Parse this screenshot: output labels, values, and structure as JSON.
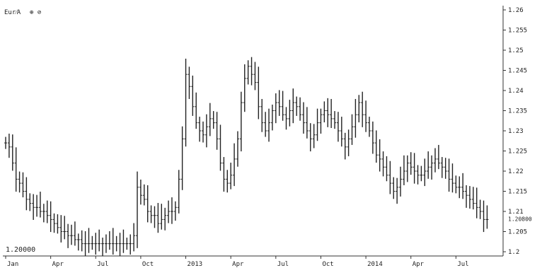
{
  "header": {
    "symbol": "Eur⁄A",
    "controls": "⊕ ⊘"
  },
  "chart_data": {
    "type": "bar",
    "style": "ohlc",
    "baseline_label": "1.20000",
    "current_value_label": "1.20800",
    "ylim": [
      1.2,
      1.26
    ],
    "y_ticks": [
      "1.26",
      "1.255",
      "1.25",
      "1.245",
      "1.24",
      "1.235",
      "1.23",
      "1.225",
      "1.22",
      "1.215",
      "1.21",
      "1.205",
      "1.2"
    ],
    "y_tick_values": [
      1.26,
      1.255,
      1.25,
      1.245,
      1.24,
      1.235,
      1.23,
      1.225,
      1.22,
      1.215,
      1.21,
      1.205,
      1.2
    ],
    "x_ticks": [
      "Jan",
      "Apr",
      "Jul",
      "Oct",
      "2013",
      "Apr",
      "Jul",
      "Oct",
      "2014",
      "Apr",
      "Jul"
    ],
    "x_tick_values": [
      0,
      13,
      26,
      39,
      52,
      65,
      78,
      91,
      104,
      117,
      130
    ],
    "x_range": [
      0,
      143
    ],
    "grid": false,
    "series": [
      {
        "close": [
          1.227,
          1.226,
          1.222,
          1.218,
          1.217,
          1.215,
          1.213,
          1.212,
          1.211,
          1.211,
          1.21,
          1.21,
          1.209,
          1.208,
          1.207,
          1.206,
          1.205,
          1.205,
          1.204,
          1.204,
          1.203,
          1.203,
          1.202,
          1.202,
          1.202,
          1.202,
          1.202,
          1.202,
          1.202,
          1.202,
          1.202,
          1.202,
          1.202,
          1.202,
          1.202,
          1.202,
          1.202,
          1.204,
          1.216,
          1.214,
          1.213,
          1.21,
          1.209,
          1.209,
          1.207,
          1.208,
          1.209,
          1.21,
          1.21,
          1.211,
          1.218,
          1.228,
          1.244,
          1.241,
          1.236,
          1.232,
          1.23,
          1.229,
          1.231,
          1.233,
          1.232,
          1.228,
          1.222,
          1.218,
          1.217,
          1.219,
          1.223,
          1.228,
          1.237,
          1.243,
          1.246,
          1.244,
          1.242,
          1.236,
          1.232,
          1.23,
          1.232,
          1.235,
          1.237,
          1.236,
          1.234,
          1.233,
          1.235,
          1.237,
          1.236,
          1.234,
          1.232,
          1.23,
          1.228,
          1.229,
          1.232,
          1.234,
          1.235,
          1.234,
          1.233,
          1.232,
          1.23,
          1.228,
          1.226,
          1.228,
          1.231,
          1.234,
          1.237,
          1.234,
          1.232,
          1.23,
          1.227,
          1.224,
          1.223,
          1.221,
          1.219,
          1.217,
          1.215,
          1.216,
          1.218,
          1.22,
          1.222,
          1.221,
          1.22,
          1.219,
          1.219,
          1.22,
          1.221,
          1.222,
          1.223,
          1.222,
          1.221,
          1.22,
          1.218,
          1.217,
          1.216,
          1.216,
          1.215,
          1.214,
          1.213,
          1.212,
          1.211,
          1.21,
          1.208,
          1.208
        ]
      }
    ]
  }
}
